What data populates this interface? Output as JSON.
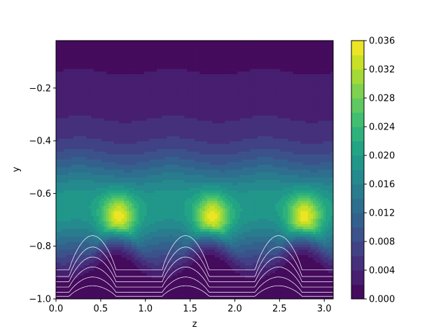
{
  "chart_data": {
    "type": "contour",
    "xlabel": "z",
    "ylabel": "y",
    "xlim": [
      0.0,
      3.1
    ],
    "ylim": [
      -1.0,
      -0.02
    ],
    "x_ticks": [
      0.0,
      0.5,
      1.0,
      1.5,
      2.0,
      2.5,
      3.0
    ],
    "x_tick_labels": [
      "0.0",
      "0.5",
      "1.0",
      "1.5",
      "2.0",
      "2.5",
      "3.0"
    ],
    "y_ticks": [
      -1.0,
      -0.8,
      -0.6,
      -0.4,
      -0.2
    ],
    "y_tick_labels": [
      "−1.0",
      "−0.8",
      "−0.6",
      "−0.4",
      "−0.2"
    ],
    "colorbar": {
      "range": [
        0.0,
        0.036
      ],
      "levels": 18,
      "colormap": "viridis",
      "ticks": [
        0.0,
        0.004,
        0.008,
        0.012,
        0.016,
        0.02,
        0.024,
        0.028,
        0.032,
        0.036
      ],
      "tick_labels": [
        "0.000",
        "0.004",
        "0.008",
        "0.012",
        "0.016",
        "0.020",
        "0.024",
        "0.028",
        "0.032",
        "0.036"
      ]
    },
    "peaks": [
      {
        "z": 0.7,
        "y": -0.69,
        "value": 0.034
      },
      {
        "z": 1.75,
        "y": -0.69,
        "value": 0.034
      },
      {
        "z": 2.78,
        "y": -0.69,
        "value": 0.034
      }
    ],
    "wave_period": 1.04,
    "streamlines": {
      "color": "#ffffff",
      "count": 6,
      "y_levels": [
        -0.89,
        -0.915,
        -0.935,
        -0.955,
        -0.975,
        -0.99
      ]
    },
    "grid": false
  }
}
